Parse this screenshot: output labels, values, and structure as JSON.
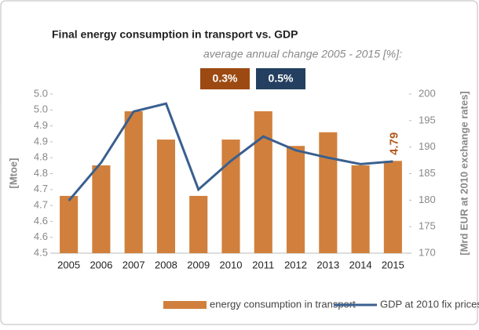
{
  "chart_data": {
    "type": "bar_line",
    "title": "Final energy consumption in transport vs. GDP",
    "subtitle": "average annual change 2005 - 2015 [%]:",
    "annotations": [
      {
        "text": "0.3%",
        "color": "#9c4a12"
      },
      {
        "text": "0.5%",
        "color": "#243f60"
      }
    ],
    "ylabel": "[Mtoe]",
    "y2label": "[Mrd EUR at 2010 exchange rates]",
    "categories": [
      "2005",
      "2006",
      "2007",
      "2008",
      "2009",
      "2010",
      "2011",
      "2012",
      "2013",
      "2014",
      "2015"
    ],
    "series": [
      {
        "name": "energy consumption in transport",
        "color": "#d0803c",
        "kind": "bar",
        "values": [
          4.68,
          4.776,
          4.946,
          4.857,
          4.68,
          4.857,
          4.946,
          4.837,
          4.88,
          4.776,
          4.79
        ]
      },
      {
        "name": "GDP at 2010 fix prices",
        "color": "#3a5f8f",
        "kind": "line",
        "axis": "y2",
        "values": [
          179.9,
          187.1,
          196.7,
          198.2,
          182.0,
          187.4,
          192.0,
          189.4,
          188.0,
          186.8,
          187.3
        ]
      }
    ],
    "ylim": [
      4.5,
      5.0
    ],
    "yticks": [
      {
        "value": 4.5,
        "label": "4.5"
      },
      {
        "value": 4.55,
        "label": "4.6"
      },
      {
        "value": 4.6,
        "label": "4.6"
      },
      {
        "value": 4.65,
        "label": "4.7"
      },
      {
        "value": 4.7,
        "label": "4.7"
      },
      {
        "value": 4.75,
        "label": "4.8"
      },
      {
        "value": 4.8,
        "label": "4.8"
      },
      {
        "value": 4.85,
        "label": "4.9"
      },
      {
        "value": 4.9,
        "label": "4.9"
      },
      {
        "value": 4.95,
        "label": "5.0"
      },
      {
        "value": 5.0,
        "label": "5.0"
      }
    ],
    "y2lim": [
      170,
      200
    ],
    "y2ticks": [
      170,
      175,
      180,
      185,
      190,
      195,
      200
    ],
    "grid": false,
    "legend": "bottom"
  }
}
